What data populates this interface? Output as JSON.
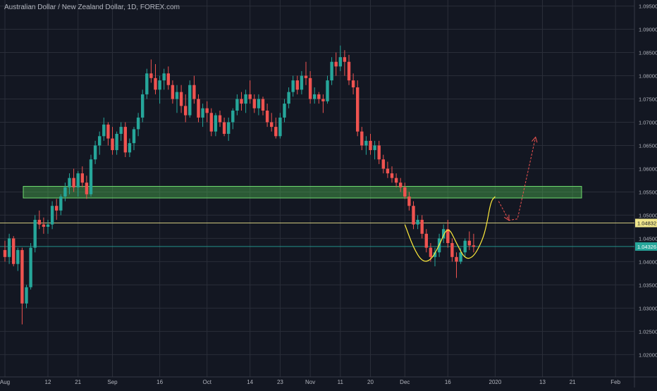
{
  "title": "Australian Dollar / New Zealand Dollar, 1D, FOREX.com",
  "chart_data": {
    "type": "candlestick",
    "ylim": [
      1.0152,
      1.0963
    ],
    "y_ticks": [
      "1.09500",
      "1.09000",
      "1.08500",
      "1.08000",
      "1.07500",
      "1.07000",
      "1.06500",
      "1.06000",
      "1.05500",
      "1.05000",
      "1.04500",
      "1.04000",
      "1.03500",
      "1.03000",
      "1.02500",
      "1.02000"
    ],
    "x_ticks": [
      {
        "label": "Aug",
        "bar": 0
      },
      {
        "label": "12",
        "bar": 10
      },
      {
        "label": "21",
        "bar": 17
      },
      {
        "label": "Sep",
        "bar": 25
      },
      {
        "label": "16",
        "bar": 36
      },
      {
        "label": "Oct",
        "bar": 47
      },
      {
        "label": "14",
        "bar": 57
      },
      {
        "label": "23",
        "bar": 64
      },
      {
        "label": "Nov",
        "bar": 71
      },
      {
        "label": "11",
        "bar": 78
      },
      {
        "label": "20",
        "bar": 85
      },
      {
        "label": "Dec",
        "bar": 93
      },
      {
        "label": "16",
        "bar": 103
      },
      {
        "label": "2020",
        "bar": 114
      },
      {
        "label": "13",
        "bar": 125
      },
      {
        "label": "21",
        "bar": 132
      },
      {
        "label": "Feb",
        "bar": 142
      }
    ],
    "candles": [
      [
        1.0425,
        1.0445,
        1.04,
        1.041
      ],
      [
        1.041,
        1.046,
        1.0395,
        1.045
      ],
      [
        1.045,
        1.0455,
        1.039,
        1.0395
      ],
      [
        1.0395,
        1.043,
        1.038,
        1.0425
      ],
      [
        1.0425,
        1.043,
        1.0265,
        1.031
      ],
      [
        1.031,
        1.035,
        1.03,
        1.0345
      ],
      [
        1.0345,
        1.044,
        1.034,
        1.043
      ],
      [
        1.043,
        1.05,
        1.042,
        1.049
      ],
      [
        1.049,
        1.051,
        1.047,
        1.048
      ],
      [
        1.048,
        1.0495,
        1.046,
        1.0475
      ],
      [
        1.0475,
        1.049,
        1.046,
        1.048
      ],
      [
        1.048,
        1.053,
        1.047,
        1.052
      ],
      [
        1.052,
        1.0535,
        1.049,
        1.051
      ],
      [
        1.051,
        1.0545,
        1.05,
        1.054
      ],
      [
        1.054,
        1.057,
        1.053,
        1.056
      ],
      [
        1.056,
        1.059,
        1.0545,
        1.058
      ],
      [
        1.058,
        1.06,
        1.055,
        1.056
      ],
      [
        1.056,
        1.0595,
        1.054,
        1.059
      ],
      [
        1.059,
        1.0605,
        1.056,
        1.057
      ],
      [
        1.057,
        1.0585,
        1.0535,
        1.0545
      ],
      [
        1.0545,
        1.063,
        1.054,
        1.062
      ],
      [
        1.062,
        1.066,
        1.061,
        1.065
      ],
      [
        1.065,
        1.068,
        1.063,
        1.067
      ],
      [
        1.067,
        1.071,
        1.066,
        1.0695
      ],
      [
        1.0695,
        1.07,
        1.065,
        1.0665
      ],
      [
        1.0665,
        1.069,
        1.063,
        1.064
      ],
      [
        1.064,
        1.068,
        1.063,
        1.0675
      ],
      [
        1.0675,
        1.07,
        1.066,
        1.069
      ],
      [
        1.069,
        1.07,
        1.0625,
        1.0635
      ],
      [
        1.0635,
        1.0665,
        1.0625,
        1.0655
      ],
      [
        1.0655,
        1.069,
        1.064,
        1.0685
      ],
      [
        1.0685,
        1.072,
        1.067,
        1.071
      ],
      [
        1.071,
        1.077,
        1.07,
        1.076
      ],
      [
        1.076,
        1.0815,
        1.075,
        1.0805
      ],
      [
        1.0805,
        1.0835,
        1.0785,
        1.0795
      ],
      [
        1.0795,
        1.0825,
        1.076,
        1.077
      ],
      [
        1.077,
        1.08,
        1.074,
        1.079
      ],
      [
        1.079,
        1.0815,
        1.077,
        1.0805
      ],
      [
        1.0805,
        1.082,
        1.077,
        1.078
      ],
      [
        1.078,
        1.079,
        1.074,
        1.075
      ],
      [
        1.075,
        1.078,
        1.072,
        1.0765
      ],
      [
        1.0765,
        1.078,
        1.072,
        1.0735
      ],
      [
        1.0735,
        1.076,
        1.07,
        1.0715
      ],
      [
        1.0715,
        1.079,
        1.071,
        1.078
      ],
      [
        1.078,
        1.08,
        1.074,
        1.075
      ],
      [
        1.075,
        1.076,
        1.07,
        1.071
      ],
      [
        1.071,
        1.074,
        1.069,
        1.073
      ],
      [
        1.073,
        1.0745,
        1.07,
        1.072
      ],
      [
        1.072,
        1.073,
        1.067,
        1.068
      ],
      [
        1.068,
        1.072,
        1.067,
        1.0715
      ],
      [
        1.0715,
        1.0725,
        1.069,
        1.07
      ],
      [
        1.07,
        1.071,
        1.067,
        1.0675
      ],
      [
        1.0675,
        1.071,
        1.066,
        1.07
      ],
      [
        1.07,
        1.073,
        1.0685,
        1.0725
      ],
      [
        1.0725,
        1.076,
        1.0715,
        1.075
      ],
      [
        1.075,
        1.0765,
        1.0725,
        1.074
      ],
      [
        1.074,
        1.077,
        1.072,
        1.076
      ],
      [
        1.076,
        1.079,
        1.074,
        1.075
      ],
      [
        1.075,
        1.076,
        1.072,
        1.073
      ],
      [
        1.073,
        1.076,
        1.0715,
        1.075
      ],
      [
        1.075,
        1.0755,
        1.0715,
        1.0725
      ],
      [
        1.0725,
        1.074,
        1.069,
        1.07
      ],
      [
        1.07,
        1.072,
        1.068,
        1.069
      ],
      [
        1.069,
        1.071,
        1.0665,
        1.067
      ],
      [
        1.067,
        1.072,
        1.0665,
        1.071
      ],
      [
        1.071,
        1.075,
        1.07,
        1.074
      ],
      [
        1.074,
        1.0775,
        1.073,
        1.0765
      ],
      [
        1.0765,
        1.08,
        1.0755,
        1.079
      ],
      [
        1.079,
        1.08,
        1.076,
        1.077
      ],
      [
        1.077,
        1.081,
        1.076,
        1.08
      ],
      [
        1.08,
        1.083,
        1.078,
        1.0795
      ],
      [
        1.0795,
        1.081,
        1.074,
        1.075
      ],
      [
        1.075,
        1.0775,
        1.074,
        1.076
      ],
      [
        1.076,
        1.0765,
        1.074,
        1.075
      ],
      [
        1.075,
        1.076,
        1.072,
        1.0745
      ],
      [
        1.0745,
        1.08,
        1.074,
        1.079
      ],
      [
        1.079,
        1.084,
        1.078,
        1.083
      ],
      [
        1.083,
        1.085,
        1.08,
        1.082
      ],
      [
        1.082,
        1.0865,
        1.081,
        1.084
      ],
      [
        1.084,
        1.0855,
        1.08,
        1.083
      ],
      [
        1.083,
        1.0845,
        1.078,
        1.079
      ],
      [
        1.079,
        1.0805,
        1.076,
        1.0775
      ],
      [
        1.0775,
        1.079,
        1.067,
        1.068
      ],
      [
        1.068,
        1.069,
        1.064,
        1.065
      ],
      [
        1.065,
        1.067,
        1.063,
        1.066
      ],
      [
        1.066,
        1.0675,
        1.063,
        1.064
      ],
      [
        1.064,
        1.066,
        1.062,
        1.065
      ],
      [
        1.065,
        1.066,
        1.061,
        1.062
      ],
      [
        1.062,
        1.063,
        1.059,
        1.06
      ],
      [
        1.06,
        1.0615,
        1.058,
        1.059
      ],
      [
        1.059,
        1.0605,
        1.057,
        1.058
      ],
      [
        1.058,
        1.059,
        1.056,
        1.057
      ],
      [
        1.057,
        1.058,
        1.055,
        1.056
      ],
      [
        1.056,
        1.057,
        1.0535,
        1.054
      ],
      [
        1.054,
        1.055,
        1.051,
        1.052
      ],
      [
        1.052,
        1.053,
        1.047,
        1.048
      ],
      [
        1.048,
        1.05,
        1.047,
        1.049
      ],
      [
        1.049,
        1.05,
        1.045,
        1.046
      ],
      [
        1.046,
        1.047,
        1.042,
        1.043
      ],
      [
        1.043,
        1.044,
        1.04,
        1.041
      ],
      [
        1.041,
        1.043,
        1.039,
        1.042
      ],
      [
        1.042,
        1.046,
        1.041,
        1.045
      ],
      [
        1.045,
        1.048,
        1.044,
        1.047
      ],
      [
        1.047,
        1.049,
        1.043,
        1.044
      ],
      [
        1.044,
        1.045,
        1.04,
        1.041
      ],
      [
        1.041,
        1.042,
        1.0365,
        1.04
      ],
      [
        1.04,
        1.043,
        1.0395,
        1.042
      ],
      [
        1.042,
        1.045,
        1.041,
        1.0445
      ],
      [
        1.0445,
        1.0465,
        1.0425,
        1.0435
      ],
      [
        1.0435,
        1.046,
        1.042,
        1.0432
      ]
    ],
    "colors": {
      "background": "#131722",
      "grid": "#2a2e39",
      "up": "#26a69a",
      "down": "#ef5350",
      "axis_text": "#b2b5be",
      "zone_fill": "#4caf50",
      "zone_stroke": "#6fdc6f",
      "level_line": "#f0e68c",
      "projection": "#ef5350",
      "pattern_curve": "#ffeb3b"
    },
    "support_zone": [
      1.0537,
      1.0562
    ],
    "level_lines": [
      {
        "price": 1.04832,
        "label": "1.04832",
        "color": "#f0e68c",
        "text_color": "#131722"
      },
      {
        "price": 1.04326,
        "label": "1.04326",
        "color": "#26a69a",
        "text_color": "#ffffff"
      }
    ],
    "pattern_curve": [
      [
        93,
        1.048
      ],
      [
        95,
        1.043
      ],
      [
        97,
        1.04
      ],
      [
        99,
        1.0402
      ],
      [
        101,
        1.0435
      ],
      [
        103,
        1.0478
      ],
      [
        105,
        1.044
      ],
      [
        107,
        1.0405
      ],
      [
        109,
        1.041
      ],
      [
        111,
        1.0445
      ],
      [
        112,
        1.0478
      ],
      [
        113,
        1.053
      ],
      [
        114,
        1.054
      ]
    ],
    "projection_path": [
      [
        114.8,
        1.053
      ],
      [
        117.2,
        1.0489
      ],
      [
        119.2,
        1.0492
      ],
      [
        123.4,
        1.0668
      ]
    ]
  }
}
